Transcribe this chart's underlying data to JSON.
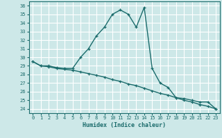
{
  "xlabel": "Humidex (Indice chaleur)",
  "bg_color": "#cde8e8",
  "grid_color": "#b0d0d0",
  "line_color": "#1a6b6b",
  "xlim": [
    -0.5,
    23.5
  ],
  "ylim": [
    23.5,
    36.5
  ],
  "xticks": [
    0,
    1,
    2,
    3,
    4,
    5,
    6,
    7,
    8,
    9,
    10,
    11,
    12,
    13,
    14,
    15,
    16,
    17,
    18,
    19,
    20,
    21,
    22,
    23
  ],
  "yticks": [
    24,
    25,
    26,
    27,
    28,
    29,
    30,
    31,
    32,
    33,
    34,
    35,
    36
  ],
  "line1_x": [
    0,
    1,
    2,
    3,
    4,
    5,
    6,
    7,
    8,
    9,
    10,
    11,
    12,
    13,
    14,
    15,
    16,
    17,
    18,
    19,
    20,
    21,
    22,
    23
  ],
  "line1_y": [
    29.5,
    29.0,
    29.0,
    28.8,
    28.7,
    28.7,
    30.0,
    31.0,
    32.5,
    33.5,
    35.0,
    35.5,
    35.0,
    33.5,
    35.8,
    28.7,
    27.0,
    26.5,
    25.3,
    25.2,
    25.0,
    24.8,
    24.8,
    24.0
  ],
  "line2_x": [
    0,
    1,
    2,
    3,
    4,
    5,
    6,
    7,
    8,
    9,
    10,
    11,
    12,
    13,
    14,
    15,
    16,
    17,
    18,
    19,
    20,
    21,
    22,
    23
  ],
  "line2_y": [
    29.5,
    29.0,
    28.9,
    28.7,
    28.6,
    28.5,
    28.3,
    28.1,
    27.9,
    27.7,
    27.4,
    27.2,
    26.9,
    26.7,
    26.4,
    26.1,
    25.8,
    25.6,
    25.3,
    25.0,
    24.8,
    24.5,
    24.3,
    24.0
  ]
}
